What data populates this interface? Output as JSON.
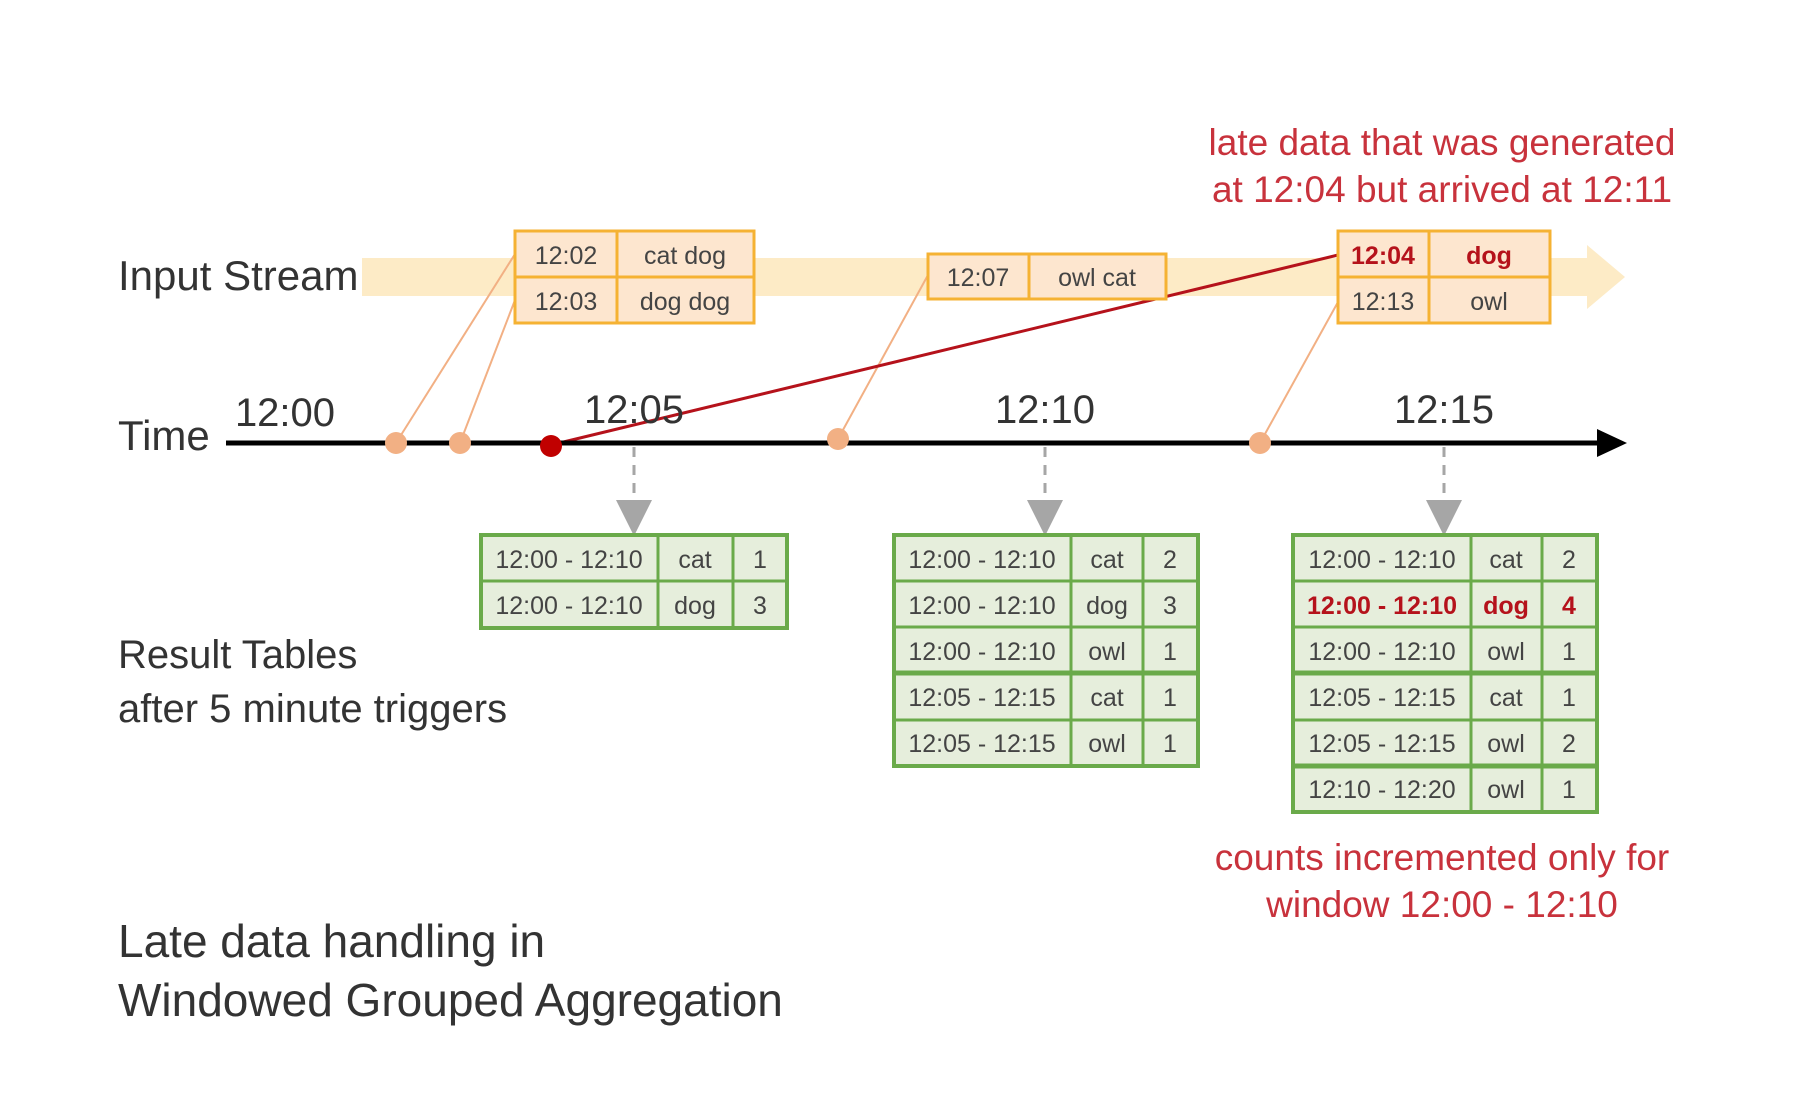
{
  "labels": {
    "input_stream": "Input Stream",
    "time": "Time",
    "result_tables_line1": "Result Tables",
    "result_tables_line2": "after 5 minute triggers",
    "caption_line1": "Late data handling in",
    "caption_line2": "Windowed Grouped Aggregation"
  },
  "annotations": {
    "late_data_line1": "late data that was generated",
    "late_data_line2": "at 12:04 but arrived at 12:11",
    "counts_line1": "counts incremented only for",
    "counts_line2": "window 12:00 - 12:10"
  },
  "time_ticks": [
    "12:00",
    "12:05",
    "12:10",
    "12:15"
  ],
  "input_events": [
    {
      "rows": [
        [
          "12:02",
          "cat dog"
        ],
        [
          "12:03",
          "dog dog"
        ]
      ]
    },
    {
      "rows": [
        [
          "12:07",
          "owl cat"
        ]
      ]
    },
    {
      "rows": [
        [
          "12:04",
          "dog"
        ],
        [
          "12:13",
          "owl"
        ]
      ],
      "late_row": 0
    }
  ],
  "result_tables": [
    {
      "rows": [
        [
          "12:00 - 12:10",
          "cat",
          "1"
        ],
        [
          "12:00 - 12:10",
          "dog",
          "3"
        ]
      ]
    },
    {
      "rows": [
        [
          "12:00 - 12:10",
          "cat",
          "2"
        ],
        [
          "12:00 - 12:10",
          "dog",
          "3"
        ],
        [
          "12:00 - 12:10",
          "owl",
          "1"
        ],
        [
          "12:05 - 12:15",
          "cat",
          "1"
        ],
        [
          "12:05 - 12:15",
          "owl",
          "1"
        ]
      ]
    },
    {
      "rows": [
        [
          "12:00 - 12:10",
          "cat",
          "2"
        ],
        [
          "12:00 - 12:10",
          "dog",
          "4"
        ],
        [
          "12:00 - 12:10",
          "owl",
          "1"
        ],
        [
          "12:05 - 12:15",
          "cat",
          "1"
        ],
        [
          "12:05 - 12:15",
          "owl",
          "2"
        ],
        [
          "12:10 - 12:20",
          "owl",
          "1"
        ]
      ],
      "highlight_row": 1
    }
  ],
  "colors": {
    "stream_band": "#fdebc6",
    "event_fill": "#fde6cf",
    "event_border": "#f5b233",
    "event_dot": "#f2b084",
    "late_dot": "#c00000",
    "late_line": "#b5121b",
    "axis": "#000000",
    "result_fill": "#e6eedc",
    "result_border": "#6aaa4a",
    "annotation": "#c8323c"
  }
}
